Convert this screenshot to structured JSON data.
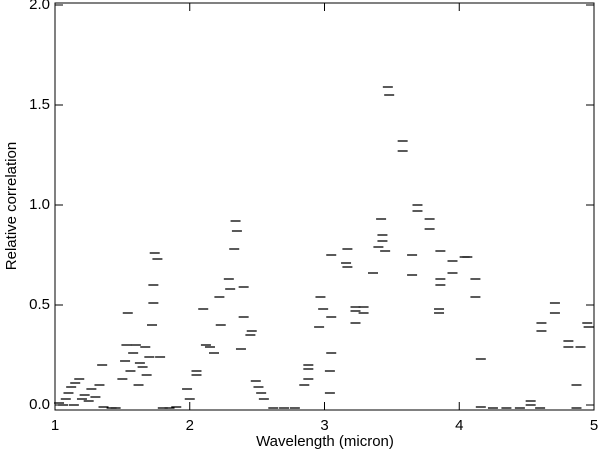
{
  "chart_data": {
    "type": "scatter",
    "x_label": "Wavelength (micron)",
    "y_label": "Relative correlation",
    "xlim": [
      1,
      5
    ],
    "ylim": [
      -0.025,
      2.01
    ],
    "xticks": [
      1,
      2,
      3,
      4,
      5
    ],
    "yticks": [
      {
        "value": 0,
        "label": "0.0"
      },
      {
        "value": 0.5,
        "label": "0.5"
      },
      {
        "value": 1,
        "label": "1.0"
      },
      {
        "value": 1.5,
        "label": "1.5"
      },
      {
        "value": 2,
        "label": "2.0"
      }
    ],
    "color": "#000000",
    "x": [
      1.03,
      1.06,
      1.08,
      1.1,
      1.12,
      1.14,
      1.15,
      1.18,
      1.2,
      1.22,
      1.25,
      1.27,
      1.3,
      1.33,
      1.35,
      1.36,
      1.42,
      1.45,
      1.5,
      1.52,
      1.53,
      1.54,
      1.56,
      1.58,
      1.6,
      1.62,
      1.63,
      1.65,
      1.67,
      1.68,
      1.7,
      1.72,
      1.73,
      1.73,
      1.74,
      1.76,
      1.78,
      1.8,
      1.85,
      1.9,
      1.98,
      2.0,
      2.05,
      2.05,
      2.1,
      2.12,
      2.15,
      2.18,
      2.22,
      2.23,
      2.29,
      2.3,
      2.34,
      2.35,
      2.33,
      2.4,
      2.4,
      2.38,
      2.46,
      2.45,
      2.49,
      2.51,
      2.53,
      2.55,
      2.62,
      2.7,
      2.78,
      2.85,
      2.88,
      2.88,
      2.88,
      2.97,
      2.99,
      2.96,
      3.05,
      3.05,
      3.04,
      3.04,
      3.05,
      3.17,
      3.16,
      3.17,
      3.23,
      3.23,
      3.23,
      3.29,
      3.29,
      3.36,
      3.4,
      3.42,
      3.43,
      3.43,
      3.45,
      3.47,
      3.48,
      3.58,
      3.58,
      3.65,
      3.65,
      3.69,
      3.69,
      3.78,
      3.78,
      3.86,
      3.86,
      3.86,
      3.85,
      3.85,
      3.95,
      3.95,
      4.04,
      4.06,
      4.12,
      4.12,
      4.16,
      4.16,
      4.25,
      4.35,
      4.45,
      4.53,
      4.53,
      4.6,
      4.61,
      4.61,
      4.71,
      4.71,
      4.81,
      4.81,
      4.87,
      4.87,
      4.9,
      4.95,
      4.96
    ],
    "values": [
      0.01,
      0.0,
      0.03,
      0.06,
      0.09,
      0.0,
      0.11,
      0.13,
      0.03,
      0.05,
      0.02,
      0.08,
      0.04,
      0.1,
      0.2,
      -0.01,
      -0.015,
      -0.015,
      0.13,
      0.22,
      0.3,
      0.46,
      0.17,
      0.26,
      0.3,
      0.1,
      0.21,
      0.19,
      0.29,
      0.15,
      0.24,
      0.4,
      0.51,
      0.6,
      0.76,
      0.73,
      0.24,
      -0.015,
      -0.015,
      -0.01,
      0.08,
      0.03,
      0.17,
      0.15,
      0.48,
      0.3,
      0.29,
      0.26,
      0.54,
      0.4,
      0.63,
      0.58,
      0.92,
      0.87,
      0.78,
      0.59,
      0.44,
      0.28,
      0.37,
      0.35,
      0.12,
      0.09,
      0.06,
      0.03,
      -0.015,
      -0.015,
      -0.015,
      0.1,
      0.2,
      0.18,
      0.13,
      0.54,
      0.48,
      0.39,
      0.44,
      0.26,
      0.17,
      0.06,
      0.75,
      0.78,
      0.71,
      0.69,
      0.49,
      0.47,
      0.41,
      0.49,
      0.46,
      0.66,
      0.79,
      0.93,
      0.85,
      0.82,
      0.77,
      1.59,
      1.55,
      1.32,
      1.27,
      0.75,
      0.65,
      1.0,
      0.97,
      0.93,
      0.88,
      0.77,
      0.63,
      0.6,
      0.48,
      0.46,
      0.72,
      0.66,
      0.74,
      0.74,
      0.63,
      0.54,
      0.23,
      -0.01,
      -0.015,
      -0.015,
      -0.015,
      0.02,
      0.0,
      -0.015,
      0.41,
      0.37,
      0.51,
      0.46,
      0.32,
      0.29,
      0.1,
      -0.015,
      0.29,
      0.41,
      0.39
    ]
  }
}
